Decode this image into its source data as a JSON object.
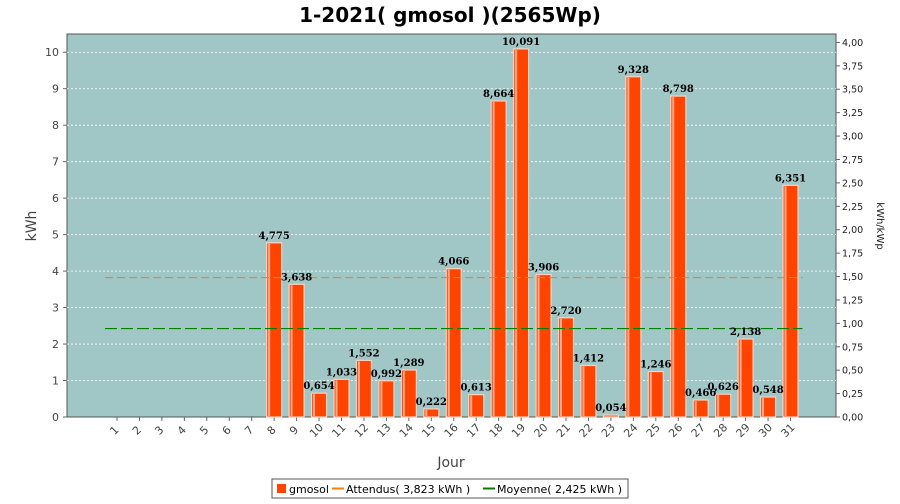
{
  "title": "1-2021( gmosol )(2565Wp)",
  "colors": {
    "plot_bg": "#a0c6c6",
    "bar": "#ff4400",
    "bar_highlight": "#ffd0c0",
    "attendus": "#ff7f00",
    "moyenne": "#008000",
    "grid": "#ffffff"
  },
  "chart_data": {
    "type": "bar",
    "title": "1-2021( gmosol )(2565Wp)",
    "xlabel": "Jour",
    "ylabel": "kWh",
    "y2label": "kWh/kWp",
    "ylim": [
      0,
      10.5
    ],
    "y2lim": [
      0,
      4.09
    ],
    "yticks": [
      "0",
      "1",
      "2",
      "3",
      "4",
      "5",
      "6",
      "7",
      "8",
      "9",
      "10"
    ],
    "y2ticks": [
      "0,00",
      "0,25",
      "0,50",
      "0,75",
      "1,00",
      "1,25",
      "1,50",
      "1,75",
      "2,00",
      "2,25",
      "2,50",
      "2,75",
      "3,00",
      "3,25",
      "3,50",
      "3,75",
      "4,00"
    ],
    "categories": [
      "1",
      "2",
      "3",
      "4",
      "5",
      "6",
      "7",
      "8",
      "9",
      "10",
      "11",
      "12",
      "13",
      "14",
      "15",
      "16",
      "17",
      "18",
      "19",
      "20",
      "21",
      "22",
      "23",
      "24",
      "25",
      "26",
      "27",
      "28",
      "29",
      "30",
      "31"
    ],
    "series": [
      {
        "name": "gmosol",
        "values": [
          0,
          0,
          0,
          0,
          0,
          0,
          0,
          4.775,
          3.638,
          0.654,
          1.033,
          1.552,
          0.992,
          1.289,
          0.222,
          4.066,
          0.613,
          8.664,
          10.091,
          3.906,
          2.72,
          1.412,
          0.054,
          9.328,
          1.246,
          8.798,
          0.466,
          0.626,
          2.138,
          0.548,
          6.351
        ],
        "labels": [
          "",
          "",
          "",
          "",
          "",
          "",
          "",
          "4,775",
          "3,638",
          "0,654",
          "1,033",
          "1,552",
          "0,992",
          "1,289",
          "0,222",
          "4,066",
          "0,613",
          "8,664",
          "10,091",
          "3,906",
          "2,720",
          "1,412",
          "0,054",
          "9,328",
          "1,246",
          "8,798",
          "0,466",
          "0,626",
          "2,138",
          "0,548",
          "6,351"
        ]
      }
    ],
    "reference_lines": [
      {
        "name": "Attendus",
        "value": 3.823,
        "legend": "Attendus( 3,823 kWh )"
      },
      {
        "name": "Moyenne",
        "value": 2.425,
        "legend": "Moyenne( 2,425 kWh )"
      }
    ],
    "legend_position": "bottom",
    "grid": true
  },
  "legend": {
    "series_label": "gmosol",
    "attendus_label": "Attendus( 3,823 kWh )",
    "moyenne_label": "Moyenne( 2,425 kWh )"
  }
}
